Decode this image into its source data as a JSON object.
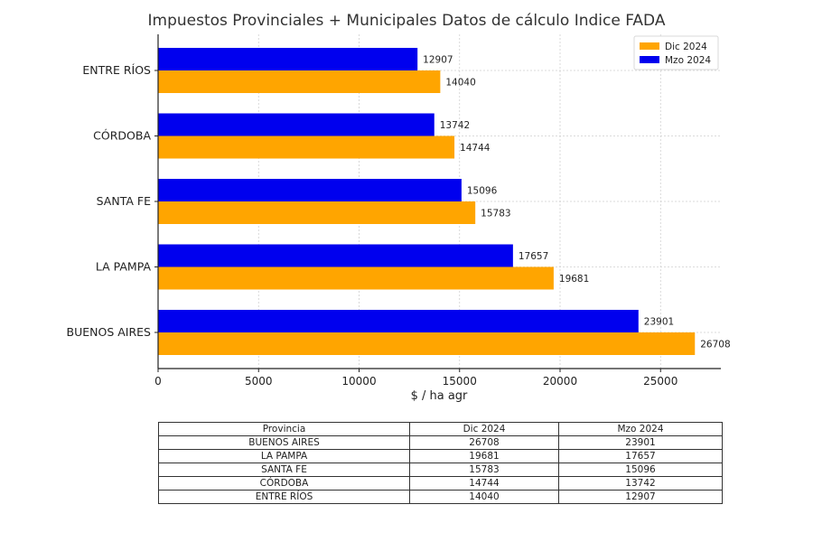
{
  "chart_data": {
    "type": "bar",
    "orientation": "horizontal",
    "title": "Impuestos Provinciales + Municipales Datos de cálculo Indice FADA",
    "xlabel": "$ / ha agr",
    "ylabel": "",
    "categories": [
      "BUENOS AIRES",
      "LA PAMPA",
      "SANTA FE",
      "CÓRDOBA",
      "ENTRE RÍOS"
    ],
    "series": [
      {
        "name": "Dic 2024",
        "color": "#FFA500",
        "values": [
          26708,
          19681,
          15783,
          14744,
          14040
        ]
      },
      {
        "name": "Mzo 2024",
        "color": "#0000EE",
        "values": [
          23901,
          17657,
          15096,
          13742,
          12907
        ]
      }
    ],
    "xlim": [
      0,
      28000
    ],
    "xticks": [
      0,
      5000,
      10000,
      15000,
      20000,
      25000
    ],
    "grid": true,
    "legend_position": "top-right"
  },
  "table": {
    "headers": [
      "Provincia",
      "Dic 2024",
      "Mzo 2024"
    ],
    "rows": [
      [
        "BUENOS AIRES",
        "26708",
        "23901"
      ],
      [
        "LA PAMPA",
        "19681",
        "17657"
      ],
      [
        "SANTA FE",
        "15783",
        "15096"
      ],
      [
        "CÓRDOBA",
        "14744",
        "13742"
      ],
      [
        "ENTRE RÍOS",
        "14040",
        "12907"
      ]
    ]
  }
}
